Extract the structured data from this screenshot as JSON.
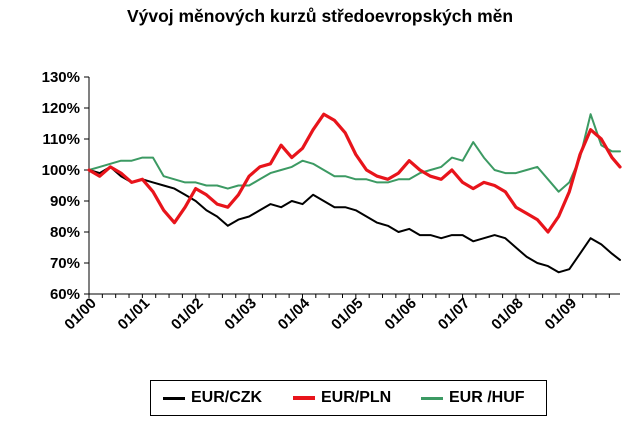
{
  "chart_data": {
    "type": "line",
    "title": "Vývoj měnových kurzů středoevropských měn",
    "xlabel": "",
    "ylabel": "",
    "ylim": [
      60,
      130
    ],
    "yticks": [
      60,
      70,
      80,
      90,
      100,
      110,
      120,
      130
    ],
    "ytick_labels": [
      "60%",
      "70%",
      "80%",
      "90%",
      "100%",
      "110%",
      "120%",
      "130%"
    ],
    "xlim": [
      2000.0,
      2009.95
    ],
    "xticks": [
      2000,
      2001,
      2002,
      2003,
      2004,
      2005,
      2006,
      2007,
      2008,
      2009
    ],
    "xtick_labels": [
      "01/00",
      "01/01",
      "01/02",
      "01/03",
      "01/04",
      "01/05",
      "01/06",
      "01/07",
      "01/08",
      "01/09"
    ],
    "grid": false,
    "legend_position": "bottom",
    "series": [
      {
        "name": "EUR/CZK",
        "color": "#000000",
        "x": [
          2000.0,
          2000.2,
          2000.4,
          2000.6,
          2000.8,
          2001.0,
          2001.2,
          2001.4,
          2001.6,
          2001.8,
          2002.0,
          2002.2,
          2002.4,
          2002.6,
          2002.8,
          2003.0,
          2003.2,
          2003.4,
          2003.6,
          2003.8,
          2004.0,
          2004.2,
          2004.4,
          2004.6,
          2004.8,
          2005.0,
          2005.2,
          2005.4,
          2005.6,
          2005.8,
          2006.0,
          2006.2,
          2006.4,
          2006.6,
          2006.8,
          2007.0,
          2007.2,
          2007.4,
          2007.6,
          2007.8,
          2008.0,
          2008.2,
          2008.4,
          2008.6,
          2008.8,
          2009.0,
          2009.2,
          2009.4,
          2009.6,
          2009.8,
          2009.95
        ],
        "values": [
          100,
          99,
          101,
          98,
          96,
          97,
          96,
          95,
          94,
          92,
          90,
          87,
          85,
          82,
          84,
          85,
          87,
          89,
          88,
          90,
          89,
          92,
          90,
          88,
          88,
          87,
          85,
          83,
          82,
          80,
          81,
          79,
          79,
          78,
          79,
          79,
          77,
          78,
          79,
          78,
          75,
          72,
          70,
          69,
          67,
          68,
          73,
          78,
          76,
          73,
          71
        ]
      },
      {
        "name": "EUR/PLN",
        "color": "#e8141b",
        "x": [
          2000.0,
          2000.2,
          2000.4,
          2000.6,
          2000.8,
          2001.0,
          2001.2,
          2001.4,
          2001.6,
          2001.8,
          2002.0,
          2002.2,
          2002.4,
          2002.6,
          2002.8,
          2003.0,
          2003.2,
          2003.4,
          2003.6,
          2003.8,
          2004.0,
          2004.2,
          2004.4,
          2004.6,
          2004.8,
          2005.0,
          2005.2,
          2005.4,
          2005.6,
          2005.8,
          2006.0,
          2006.2,
          2006.4,
          2006.6,
          2006.8,
          2007.0,
          2007.2,
          2007.4,
          2007.6,
          2007.8,
          2008.0,
          2008.2,
          2008.4,
          2008.6,
          2008.8,
          2009.0,
          2009.2,
          2009.4,
          2009.6,
          2009.8,
          2009.95
        ],
        "values": [
          100,
          98,
          101,
          99,
          96,
          97,
          93,
          87,
          83,
          88,
          94,
          92,
          89,
          88,
          92,
          98,
          101,
          102,
          108,
          104,
          107,
          113,
          118,
          116,
          112,
          105,
          100,
          98,
          97,
          99,
          103,
          100,
          98,
          97,
          100,
          96,
          94,
          96,
          95,
          93,
          88,
          86,
          84,
          80,
          85,
          93,
          105,
          113,
          110,
          104,
          101
        ]
      },
      {
        "name": "EUR /HUF",
        "color": "#3c9a63",
        "x": [
          2000.0,
          2000.2,
          2000.4,
          2000.6,
          2000.8,
          2001.0,
          2001.2,
          2001.4,
          2001.6,
          2001.8,
          2002.0,
          2002.2,
          2002.4,
          2002.6,
          2002.8,
          2003.0,
          2003.2,
          2003.4,
          2003.6,
          2003.8,
          2004.0,
          2004.2,
          2004.4,
          2004.6,
          2004.8,
          2005.0,
          2005.2,
          2005.4,
          2005.6,
          2005.8,
          2006.0,
          2006.2,
          2006.4,
          2006.6,
          2006.8,
          2007.0,
          2007.2,
          2007.4,
          2007.6,
          2007.8,
          2008.0,
          2008.2,
          2008.4,
          2008.6,
          2008.8,
          2009.0,
          2009.2,
          2009.4,
          2009.6,
          2009.8,
          2009.95
        ],
        "values": [
          100,
          101,
          102,
          103,
          103,
          104,
          104,
          98,
          97,
          96,
          96,
          95,
          95,
          94,
          95,
          95,
          97,
          99,
          100,
          101,
          103,
          102,
          100,
          98,
          98,
          97,
          97,
          96,
          96,
          97,
          97,
          99,
          100,
          101,
          104,
          103,
          109,
          104,
          100,
          99,
          99,
          100,
          101,
          97,
          93,
          96,
          104,
          118,
          108,
          106,
          106
        ]
      }
    ]
  }
}
